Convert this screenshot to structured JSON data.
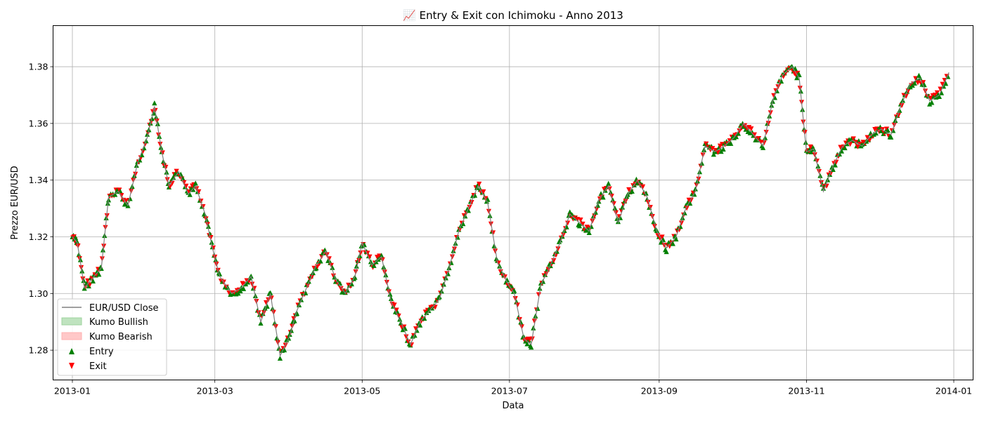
{
  "chart_data": {
    "type": "line",
    "title": "📈 Entry & Exit con Ichimoku - Anno 2013",
    "xlabel": "Data",
    "ylabel": "Prezzo EUR/USD",
    "xlim": [
      "2012-12-24",
      "2014-01-09"
    ],
    "ylim": [
      1.2695,
      1.3945
    ],
    "grid": true,
    "legend_position": "lower-left",
    "x_ticks": [
      "2013-01",
      "2013-03",
      "2013-05",
      "2013-07",
      "2013-09",
      "2013-11",
      "2014-01"
    ],
    "y_ticks": [
      "1.28",
      "1.30",
      "1.32",
      "1.34",
      "1.36",
      "1.38"
    ],
    "legend": [
      "EUR/USD Close",
      "Kumo Bullish",
      "Kumo Bearish",
      "Entry",
      "Exit"
    ],
    "colors": {
      "close": "#808080",
      "kumo_bullish": "#bfe3bf",
      "kumo_bearish": "#ffc8c8",
      "entry": "#008000",
      "exit": "#ff0000",
      "grid": "#b0b0b0"
    },
    "series": [
      {
        "name": "EUR/USD Close",
        "x": [
          "2013-01-01",
          "2013-01-03",
          "2013-01-06",
          "2013-01-10",
          "2013-01-13",
          "2013-01-16",
          "2013-01-20",
          "2013-01-24",
          "2013-01-28",
          "2013-02-01",
          "2013-02-04",
          "2013-02-07",
          "2013-02-10",
          "2013-02-14",
          "2013-02-18",
          "2013-02-21",
          "2013-02-25",
          "2013-02-28",
          "2013-03-03",
          "2013-03-08",
          "2013-03-12",
          "2013-03-16",
          "2013-03-20",
          "2013-03-24",
          "2013-03-28",
          "2013-04-01",
          "2013-04-04",
          "2013-04-08",
          "2013-04-12",
          "2013-04-16",
          "2013-04-20",
          "2013-04-24",
          "2013-04-28",
          "2013-05-01",
          "2013-05-05",
          "2013-05-09",
          "2013-05-13",
          "2013-05-17",
          "2013-05-21",
          "2013-05-25",
          "2013-05-29",
          "2013-06-02",
          "2013-06-06",
          "2013-06-10",
          "2013-06-14",
          "2013-06-18",
          "2013-06-22",
          "2013-06-26",
          "2013-06-30",
          "2013-07-03",
          "2013-07-07",
          "2013-07-10",
          "2013-07-14",
          "2013-07-18",
          "2013-07-22",
          "2013-07-26",
          "2013-07-30",
          "2013-08-03",
          "2013-08-07",
          "2013-08-11",
          "2013-08-15",
          "2013-08-19",
          "2013-08-23",
          "2013-08-27",
          "2013-08-31",
          "2013-09-04",
          "2013-09-08",
          "2013-09-12",
          "2013-09-16",
          "2013-09-20",
          "2013-09-24",
          "2013-09-28",
          "2013-10-02",
          "2013-10-06",
          "2013-10-10",
          "2013-10-14",
          "2013-10-18",
          "2013-10-22",
          "2013-10-26",
          "2013-10-29",
          "2013-11-01",
          "2013-11-04",
          "2013-11-08",
          "2013-11-12",
          "2013-11-16",
          "2013-11-20",
          "2013-11-24",
          "2013-11-28",
          "2013-12-02",
          "2013-12-06",
          "2013-12-10",
          "2013-12-14",
          "2013-12-18",
          "2013-12-22",
          "2013-12-26",
          "2013-12-30"
        ],
        "values": [
          1.32,
          1.318,
          1.302,
          1.306,
          1.309,
          1.334,
          1.336,
          1.331,
          1.346,
          1.355,
          1.366,
          1.35,
          1.338,
          1.343,
          1.335,
          1.338,
          1.328,
          1.316,
          1.306,
          1.3,
          1.302,
          1.306,
          1.29,
          1.3,
          1.278,
          1.285,
          1.294,
          1.302,
          1.31,
          1.315,
          1.305,
          1.3,
          1.306,
          1.318,
          1.31,
          1.313,
          1.297,
          1.29,
          1.282,
          1.29,
          1.294,
          1.298,
          1.309,
          1.322,
          1.33,
          1.338,
          1.332,
          1.311,
          1.304,
          1.3,
          1.284,
          1.282,
          1.303,
          1.31,
          1.318,
          1.328,
          1.325,
          1.322,
          1.333,
          1.338,
          1.325,
          1.335,
          1.34,
          1.334,
          1.322,
          1.316,
          1.32,
          1.33,
          1.336,
          1.352,
          1.35,
          1.352,
          1.355,
          1.36,
          1.356,
          1.352,
          1.368,
          1.377,
          1.38,
          1.376,
          1.35,
          1.351,
          1.336,
          1.345,
          1.352,
          1.354,
          1.352,
          1.356,
          1.358,
          1.356,
          1.366,
          1.374,
          1.376,
          1.368,
          1.37,
          1.378
        ]
      }
    ],
    "entry_exit_markers": "dense alternating Entry (green triangle-up) and Exit (red triangle-down) markers placed along the close series throughout the year"
  }
}
